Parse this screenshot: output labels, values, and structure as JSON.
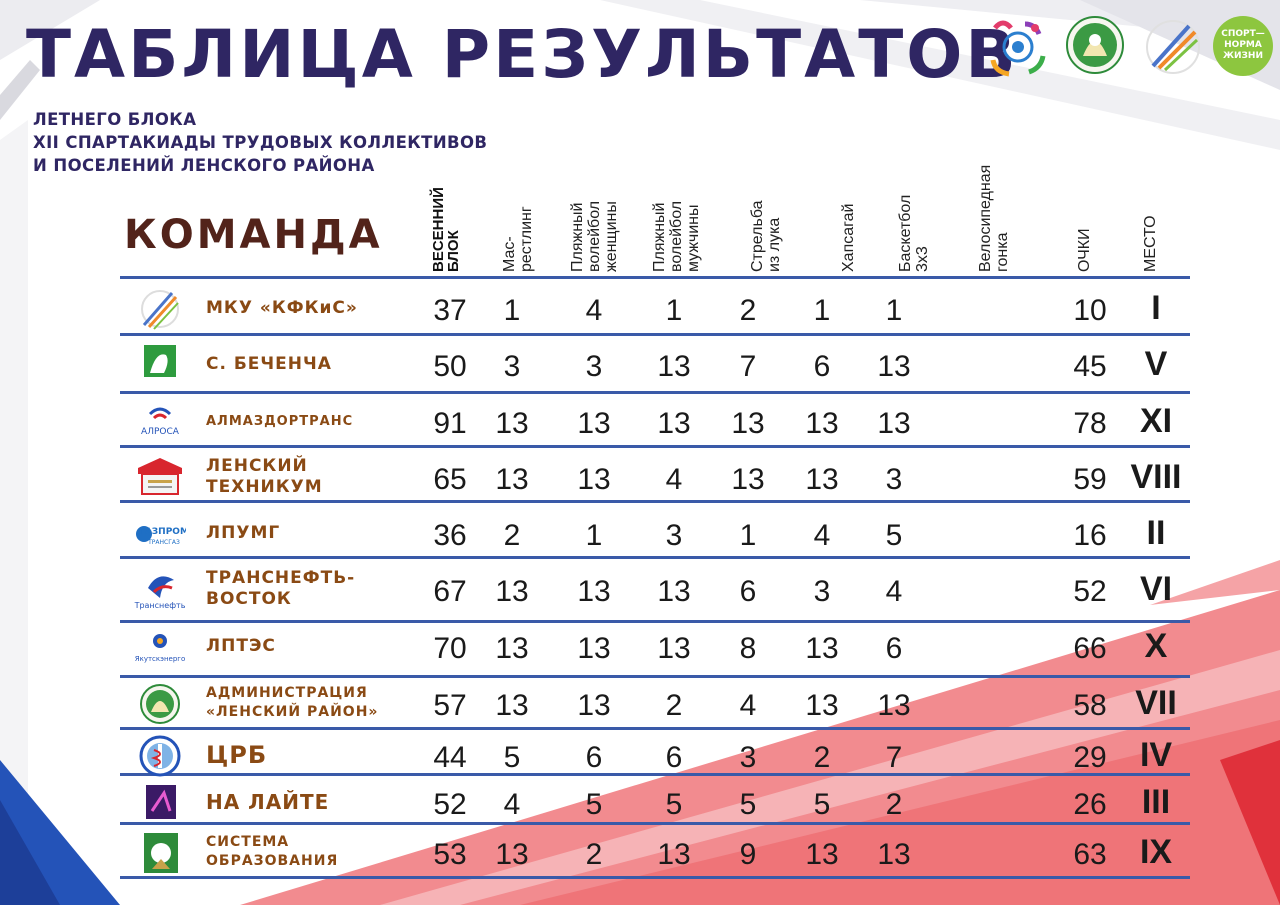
{
  "title": "ТАБЛИЦА РЕЗУЛЬТАТОВ",
  "subtitle": [
    "ЛЕТНЕГО БЛОКА",
    "XII СПАРТАКИАДЫ ТРУДОВЫХ КОЛЛЕКТИВОВ",
    "И ПОСЕЛЕНИЙ ЛЕНСКОГО РАЙОНА"
  ],
  "team_header": "КОМАНДА",
  "columns": [
    {
      "label": "ВЕСЕННИЙ БЛОК",
      "lines": [
        "ВЕСЕННИЙ",
        "БЛОК"
      ],
      "bold": true
    },
    {
      "label": "Мас-рестлинг",
      "lines": [
        "Мас-",
        "рестлинг"
      ]
    },
    {
      "label": "Пляжный волейбол женщины",
      "lines": [
        "Пляжный",
        "волейбол",
        "женщины"
      ]
    },
    {
      "label": "Пляжный волейбол мужчины",
      "lines": [
        "Пляжный",
        "волейбол",
        "мужчины"
      ]
    },
    {
      "label": "Стрельба из лука",
      "lines": [
        "Стрельба",
        "из лука"
      ]
    },
    {
      "label": "Хапсагай",
      "lines": [
        "Хапсагай"
      ]
    },
    {
      "label": "Баскетбол 3х3",
      "lines": [
        "Баскетбол",
        "3х3"
      ]
    },
    {
      "label": "Велосипедная гонка",
      "lines": [
        "Велосипедная",
        "гонка"
      ]
    },
    {
      "label": "ОЧКИ",
      "lines": [
        "ОЧКИ"
      ]
    },
    {
      "label": "МЕСТО",
      "lines": [
        "МЕСТО"
      ]
    }
  ],
  "rows": [
    {
      "logo": "kfkis-logo",
      "team": [
        "МКУ «КФКиС»"
      ],
      "size": "mid",
      "spring": "37",
      "scores": [
        "1",
        "4",
        "1",
        "2",
        "1",
        "1",
        ""
      ],
      "points": "10",
      "place": "I"
    },
    {
      "logo": "bechencha-coat-icon",
      "team": [
        "С. БЕЧЕНЧА"
      ],
      "size": "mid",
      "spring": "50",
      "scores": [
        "3",
        "3",
        "13",
        "7",
        "6",
        "13",
        ""
      ],
      "points": "45",
      "place": "V"
    },
    {
      "logo": "alrosa-logo",
      "team": [
        "АЛМАЗДОРТРАНС"
      ],
      "size": "tiny",
      "spring": "91",
      "scores": [
        "13",
        "13",
        "13",
        "13",
        "13",
        "13",
        ""
      ],
      "points": "78",
      "place": "XI"
    },
    {
      "logo": "technikum-logo",
      "team": [
        "ЛЕНСКИЙ",
        "ТЕХНИКУМ"
      ],
      "size": "mid",
      "spring": "65",
      "scores": [
        "13",
        "13",
        "4",
        "13",
        "13",
        "3",
        ""
      ],
      "points": "59",
      "place": "VIII"
    },
    {
      "logo": "gazprom-logo",
      "team": [
        "ЛПУМГ"
      ],
      "size": "mid",
      "spring": "36",
      "scores": [
        "2",
        "1",
        "3",
        "1",
        "4",
        "5",
        ""
      ],
      "points": "16",
      "place": "II"
    },
    {
      "logo": "transneft-logo",
      "team": [
        "ТРАНСНЕФТЬ-",
        "ВОСТОК"
      ],
      "size": "mid",
      "spring": "67",
      "scores": [
        "13",
        "13",
        "13",
        "6",
        "3",
        "4",
        ""
      ],
      "points": "52",
      "place": "VI"
    },
    {
      "logo": "yakutskenergo-logo",
      "team": [
        "ЛПТЭС"
      ],
      "size": "mid",
      "spring": "70",
      "scores": [
        "13",
        "13",
        "13",
        "8",
        "13",
        "6",
        ""
      ],
      "points": "66",
      "place": "X"
    },
    {
      "logo": "lensk-admin-logo",
      "team": [
        "АДМИНИСТРАЦИЯ",
        "«ЛЕНСКИЙ РАЙОН»"
      ],
      "size": "small",
      "spring": "57",
      "scores": [
        "13",
        "13",
        "2",
        "4",
        "13",
        "13",
        ""
      ],
      "points": "58",
      "place": "VII"
    },
    {
      "logo": "crb-logo",
      "team": [
        "ЦРБ"
      ],
      "size": "huge",
      "spring": "44",
      "scores": [
        "5",
        "6",
        "6",
        "3",
        "2",
        "7",
        ""
      ],
      "points": "29",
      "place": "IV"
    },
    {
      "logo": "na-laite-logo",
      "team": [
        "НА ЛАЙТЕ"
      ],
      "size": "big",
      "spring": "52",
      "scores": [
        "4",
        "5",
        "5",
        "5",
        "5",
        "2",
        ""
      ],
      "points": "26",
      "place": "III"
    },
    {
      "logo": "education-logo",
      "team": [
        "СИСТЕМА",
        "ОБРАЗОВАНИЯ"
      ],
      "size": "small",
      "spring": "53",
      "scores": [
        "13",
        "2",
        "13",
        "9",
        "13",
        "13",
        ""
      ],
      "points": "63",
      "place": "IX"
    }
  ],
  "colors": {
    "title": "#2f2663",
    "team_header": "#52231a",
    "team_name": "#8a4a14",
    "row_line": "#3a5aa8",
    "accent_red": "#f28b8f",
    "accent_blue": "#2453b8"
  }
}
